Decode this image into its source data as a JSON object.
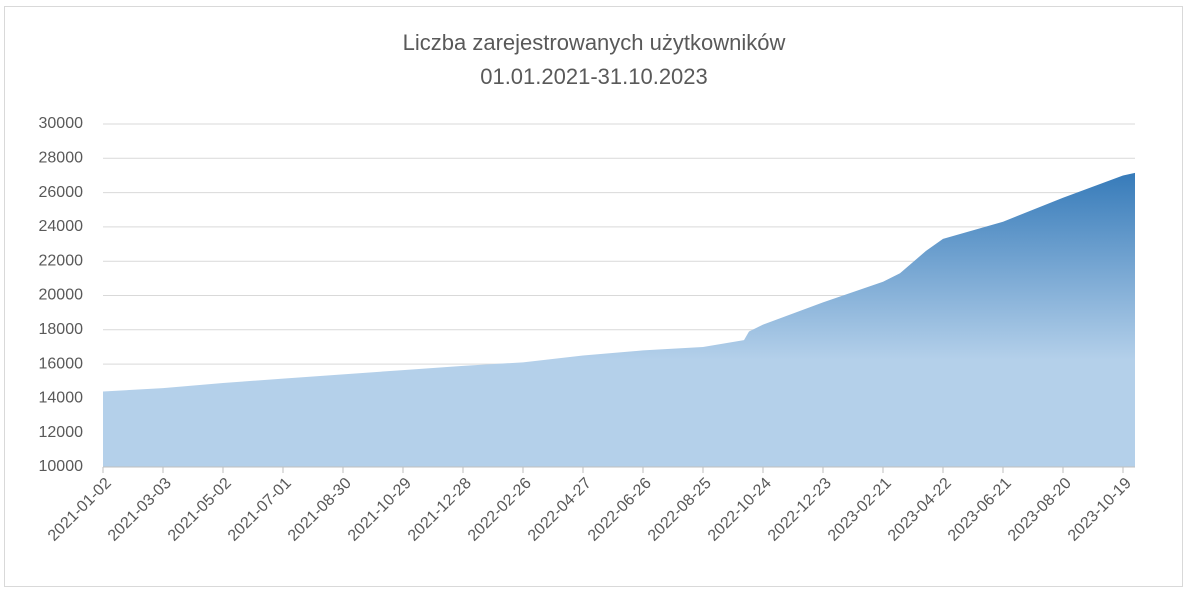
{
  "chart_data": {
    "type": "area",
    "title": "Liczba zarejestrowanych użytkowników",
    "subtitle": "01.01.2021-31.10.2023",
    "x": [
      "2021-01-02",
      "2021-03-03",
      "2021-05-02",
      "2021-07-01",
      "2021-08-30",
      "2021-10-29",
      "2021-12-28",
      "2022-02-26",
      "2022-04-27",
      "2022-06-26",
      "2022-08-25",
      "2022-10-05",
      "2022-10-10",
      "2022-10-24",
      "2022-12-23",
      "2023-02-21",
      "2023-03-10",
      "2023-04-05",
      "2023-04-22",
      "2023-06-21",
      "2023-08-20",
      "2023-10-19",
      "2023-10-31"
    ],
    "values": [
      14400,
      14600,
      14900,
      15150,
      15400,
      15650,
      15900,
      16100,
      16500,
      16800,
      17000,
      17400,
      17900,
      18300,
      19600,
      20800,
      21300,
      22600,
      23300,
      24300,
      25700,
      27000,
      27150
    ],
    "color": "#b4d0ea",
    "gradient_color": "#2e75b6",
    "xlim": [
      "2021-01-02",
      "2023-10-31"
    ],
    "xticks": [
      "2021-01-02",
      "2021-03-03",
      "2021-05-02",
      "2021-07-01",
      "2021-08-30",
      "2021-10-29",
      "2021-12-28",
      "2022-02-26",
      "2022-04-27",
      "2022-06-26",
      "2022-08-25",
      "2022-10-24",
      "2022-12-23",
      "2023-02-21",
      "2023-04-22",
      "2023-06-21",
      "2023-08-20",
      "2023-10-19"
    ],
    "ylim": [
      10000,
      30000
    ],
    "yticks": [
      10000,
      12000,
      14000,
      16000,
      18000,
      20000,
      22000,
      24000,
      26000,
      28000,
      30000
    ],
    "grid": true
  }
}
